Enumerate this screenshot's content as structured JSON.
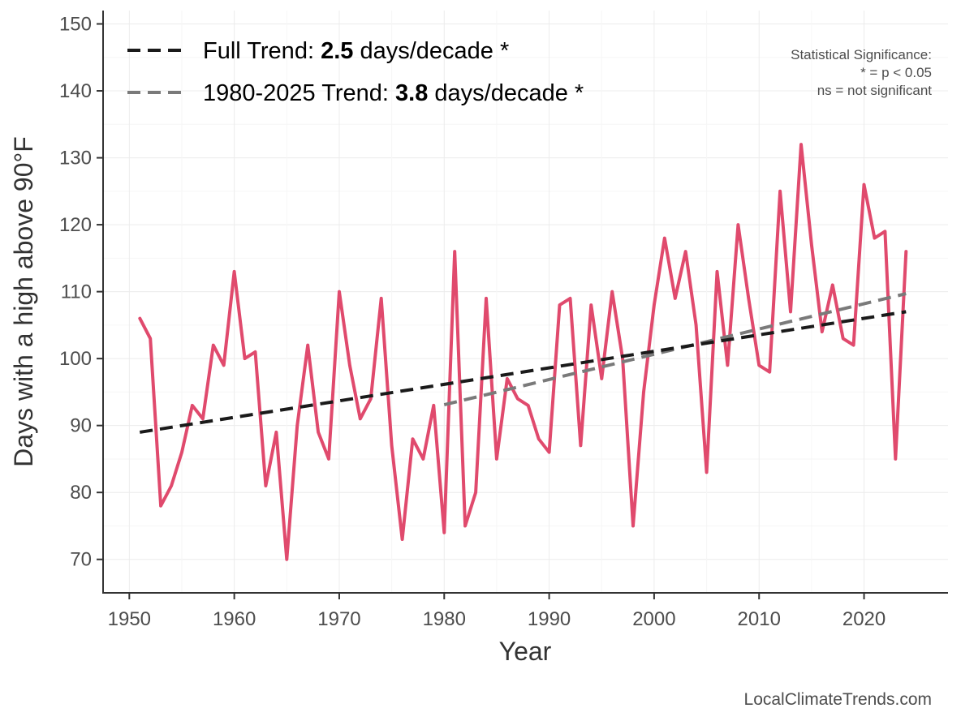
{
  "chart_data": {
    "type": "line",
    "title": "",
    "xlabel": "Year",
    "ylabel": "Days with a high above 90°F",
    "xlim": [
      1947.5,
      2028
    ],
    "ylim": [
      65,
      152
    ],
    "xticks": [
      1950,
      1960,
      1970,
      1980,
      1990,
      2000,
      2010,
      2020
    ],
    "yticks": [
      70,
      80,
      90,
      100,
      110,
      120,
      130,
      140,
      150
    ],
    "grid": true,
    "series": [
      {
        "name": "Days with a high above 90°F",
        "color": "#e04a6d",
        "x": [
          1951,
          1952,
          1953,
          1954,
          1955,
          1956,
          1957,
          1958,
          1959,
          1960,
          1961,
          1962,
          1963,
          1964,
          1965,
          1966,
          1967,
          1968,
          1969,
          1970,
          1971,
          1972,
          1973,
          1974,
          1975,
          1976,
          1977,
          1978,
          1979,
          1980,
          1981,
          1982,
          1983,
          1984,
          1985,
          1986,
          1987,
          1988,
          1989,
          1990,
          1991,
          1992,
          1993,
          1994,
          1995,
          1996,
          1997,
          1998,
          1999,
          2000,
          2001,
          2002,
          2003,
          2004,
          2005,
          2006,
          2007,
          2008,
          2009,
          2010,
          2011,
          2012,
          2013,
          2014,
          2015,
          2016,
          2017,
          2018,
          2019,
          2020,
          2021,
          2022,
          2023,
          2024
        ],
        "values": [
          106,
          103,
          78,
          81,
          86,
          93,
          91,
          102,
          99,
          113,
          100,
          101,
          81,
          89,
          70,
          90,
          102,
          89,
          85,
          110,
          99,
          91,
          94,
          109,
          87,
          73,
          88,
          85,
          93,
          74,
          116,
          75,
          80,
          109,
          85,
          97,
          94,
          93,
          88,
          86,
          108,
          109,
          87,
          108,
          97,
          110,
          100,
          75,
          95,
          108,
          118,
          109,
          116,
          105,
          83,
          113,
          99,
          120,
          109,
          99,
          98,
          125,
          107,
          132,
          117,
          104,
          111,
          103,
          102,
          126,
          118,
          119,
          85,
          116
        ]
      }
    ],
    "trends": [
      {
        "name": "Full Trend",
        "prefix": "Full Trend: ",
        "value": "2.5",
        "suffix": " days/decade *",
        "color": "#1a1a1a",
        "x": [
          1951,
          2024
        ],
        "y": [
          89.0,
          107.0
        ]
      },
      {
        "name": "1980-2025 Trend",
        "prefix": "1980-2025 Trend: ",
        "value": "3.8",
        "suffix": " days/decade *",
        "color": "#7a7a7a",
        "x": [
          1980,
          2024
        ],
        "y": [
          93.1,
          109.7
        ]
      }
    ],
    "legend_position": "top-left",
    "significance_note": [
      "Statistical Significance:",
      "* = p < 0.05",
      "ns = not significant"
    ],
    "source": "LocalClimateTrends.com"
  }
}
